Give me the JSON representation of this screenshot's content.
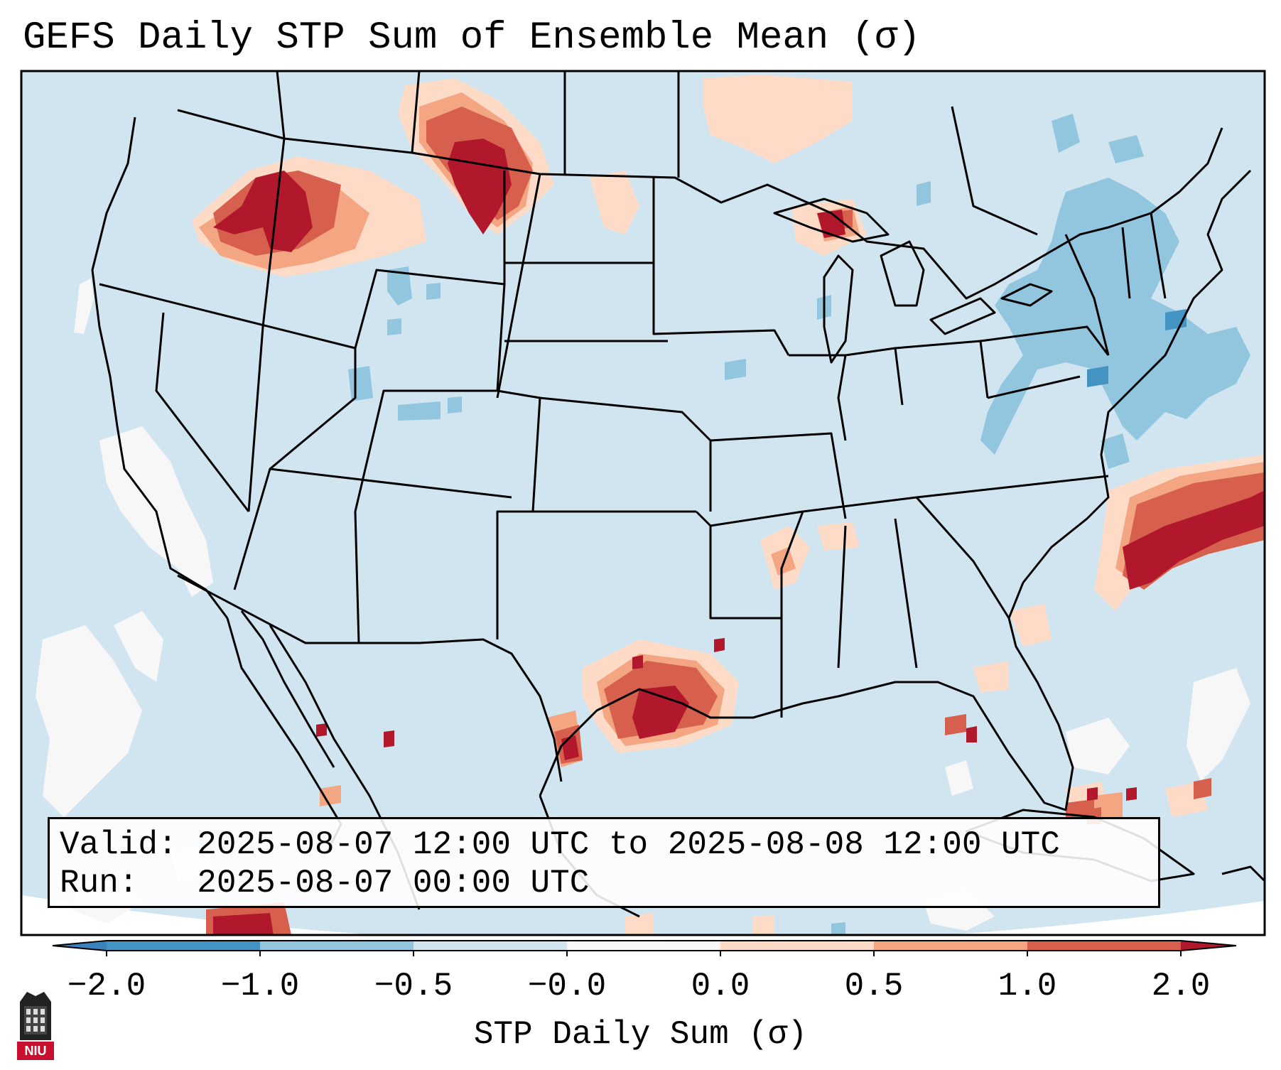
{
  "title": "GEFS Daily STP Sum of Ensemble Mean (σ)",
  "info": {
    "valid_label": "Valid:",
    "valid_value": "2025-08-07 12:00 UTC to 2025-08-08 12:00 UTC",
    "run_label": "Run:",
    "run_value": "2025-08-07 00:00 UTC"
  },
  "colorbar": {
    "label": "STP Daily Sum (σ)",
    "ticks": [
      "−2.0",
      "−1.0",
      "−0.5",
      "−0.0",
      "0.0",
      "0.5",
      "1.0",
      "2.0"
    ],
    "colors": [
      "#3b81bc",
      "#8ec1df",
      "#cce4f1",
      "#f6f7f9",
      "#fbd3bd",
      "#ef9c7e",
      "#d6584d",
      "#b2182b"
    ],
    "extend": "both"
  },
  "legend_colors": {
    "background": "#d1e5f0",
    "strong_positive": "#b2182b",
    "positive": "#d6604d",
    "weak_positive": "#f4a582",
    "slight_positive": "#fddbc7",
    "neutral": "#f7f7f7",
    "slight_negative": "#92c5de",
    "negative": "#4393c3"
  },
  "logo": {
    "text": "NIU",
    "color": "#c8102e"
  },
  "map_regions": [
    "Idaho/Montana maximum",
    "Saskatchewan/Montana maximum",
    "Upper Michigan",
    "Southeast Texas maximum",
    "Atlantic offshore maximum",
    "Northeast US negative area",
    "Pacific neutral area",
    "Mexico maximum"
  ]
}
